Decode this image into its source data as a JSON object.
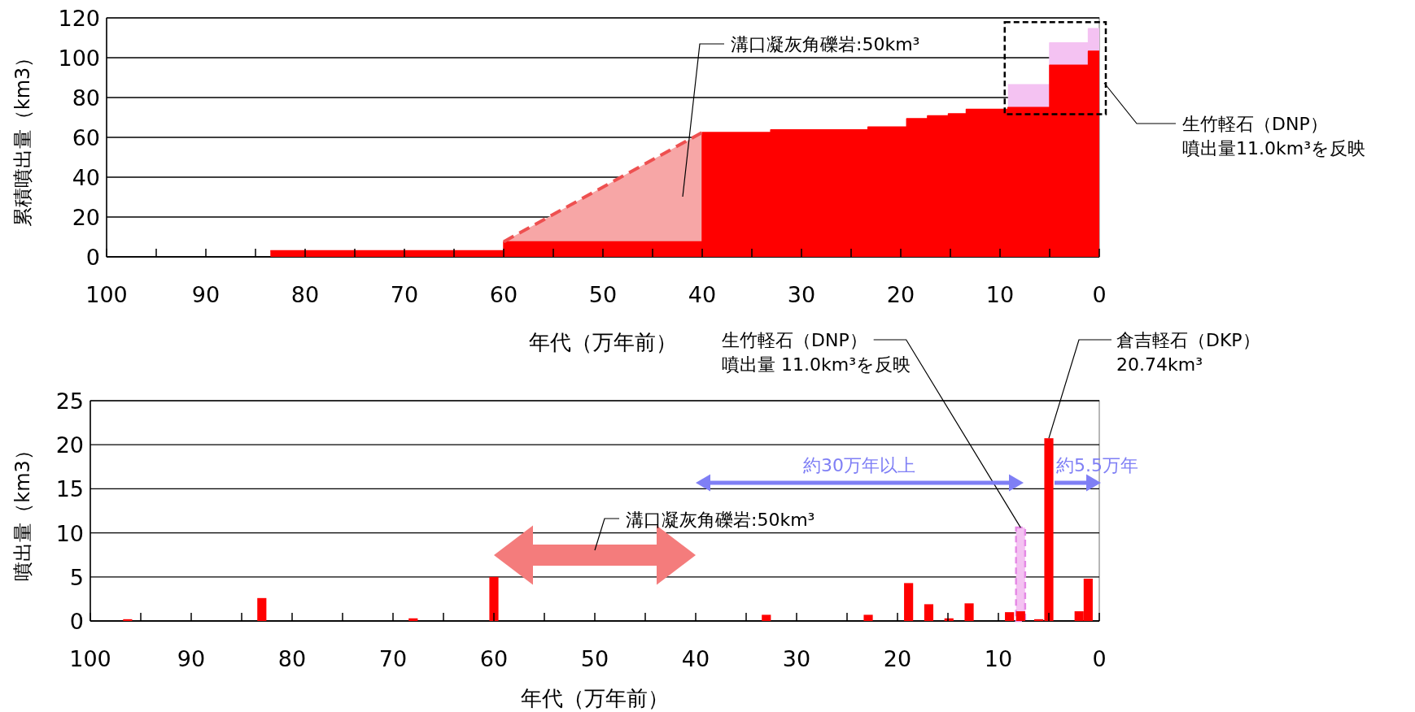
{
  "chart_data": [
    {
      "type": "area",
      "xlabel": "年代（万年前）",
      "ylabel": "累積噴出量（km3）",
      "xlim": [
        100,
        0
      ],
      "ylim": [
        0,
        120
      ],
      "xticks": [
        100,
        {
          "value": 95,
          "label": null
        },
        90,
        {
          "value": 85,
          "label": null
        },
        80,
        {
          "value": 75,
          "label": null
        },
        70,
        {
          "value": 65,
          "label": null
        },
        60,
        {
          "value": 55,
          "label": null
        },
        50,
        {
          "value": 45,
          "label": null
        },
        40,
        {
          "value": 35,
          "label": null
        },
        30,
        {
          "value": 25,
          "label": null
        },
        20,
        {
          "value": 15,
          "label": null
        },
        10,
        {
          "value": 5,
          "label": null
        },
        0
      ],
      "yticks": [
        0,
        20,
        40,
        60,
        80,
        100,
        120
      ],
      "grid": "y",
      "series": [
        {
          "type": "area",
          "color": "#f4c2f2",
          "x": [
            9.2,
            5,
            5,
            1.1,
            1.1,
            0
          ],
          "values": [
            86.4,
            86.4,
            107.5,
            107.5,
            114.6,
            114.6
          ]
        },
        {
          "type": "area",
          "color": "#f7a6a6",
          "line_style": "dashed",
          "x": [
            60,
            40
          ],
          "values": [
            7.6,
            62.5
          ]
        },
        {
          "type": "area",
          "color": "#ff0000",
          "x": [
            83.5,
            60,
            60,
            40,
            40,
            33.1,
            33.1,
            23.3,
            23.3,
            19.4,
            19.4,
            17.3,
            17.3,
            15.2,
            15.2,
            13.4,
            13.4,
            9.2,
            9.2,
            5,
            5,
            1.1,
            1.1,
            0
          ],
          "values": [
            3.1,
            3.1,
            7.6,
            7.6,
            62.5,
            62.5,
            63.8,
            63.8,
            65.2,
            65.2,
            69.4,
            69.4,
            70.8,
            70.8,
            71.8,
            71.8,
            74.1,
            74.1,
            75,
            75,
            96.2,
            96.2,
            103.3,
            103.3
          ]
        }
      ],
      "annotations": [
        "溝口凝灰角礫岩:50km³",
        "生竹軽石（DNP）",
        "噴出量11.0km³を反映"
      ]
    },
    {
      "type": "bar",
      "xlabel": "年代（万年前）",
      "ylabel": "噴出量（km3）",
      "xlim": [
        100,
        0
      ],
      "ylim": [
        0,
        25
      ],
      "xticks": [
        100,
        {
          "value": 95,
          "label": null
        },
        90,
        {
          "value": 85,
          "label": null
        },
        80,
        {
          "value": 75,
          "label": null
        },
        70,
        {
          "value": 65,
          "label": null
        },
        60,
        {
          "value": 55,
          "label": null
        },
        50,
        {
          "value": 45,
          "label": null
        },
        40,
        {
          "value": 35,
          "label": null
        },
        30,
        {
          "value": 25,
          "label": null
        },
        20,
        {
          "value": 15,
          "label": null
        },
        10,
        {
          "value": 5,
          "label": null
        },
        0
      ],
      "yticks": [
        0,
        5,
        10,
        15,
        20,
        25
      ],
      "grid": "y",
      "series": [
        {
          "color": "#f4c2f2",
          "line_style": "dashed",
          "x": [
            7.8
          ],
          "values": [
            10.6
          ]
        },
        {
          "color": "#ff0000",
          "x": [
            96.3,
            83,
            68,
            60,
            33,
            22.9,
            18.9,
            16.9,
            14.9,
            12.9,
            8.9,
            7.8,
            6,
            5,
            2,
            1.1
          ],
          "values": [
            0.2,
            2.6,
            0.3,
            5,
            0.7,
            0.7,
            4.3,
            1.9,
            0.3,
            2,
            1,
            1.1,
            0.2,
            20.74,
            1.1,
            4.8
          ]
        }
      ],
      "annotations": [
        {
          "text": "生竹軽石（DNP）",
          "x": 7.8,
          "y": 10.6
        },
        "噴出量 11.0km³を反映",
        {
          "text": "倉吉軽石（DKP）",
          "x": 5,
          "y": 20.74
        },
        "20.74km³",
        "溝口凝灰角礫岩:50km³",
        "約30万年以上",
        "約5.5万年"
      ]
    }
  ]
}
